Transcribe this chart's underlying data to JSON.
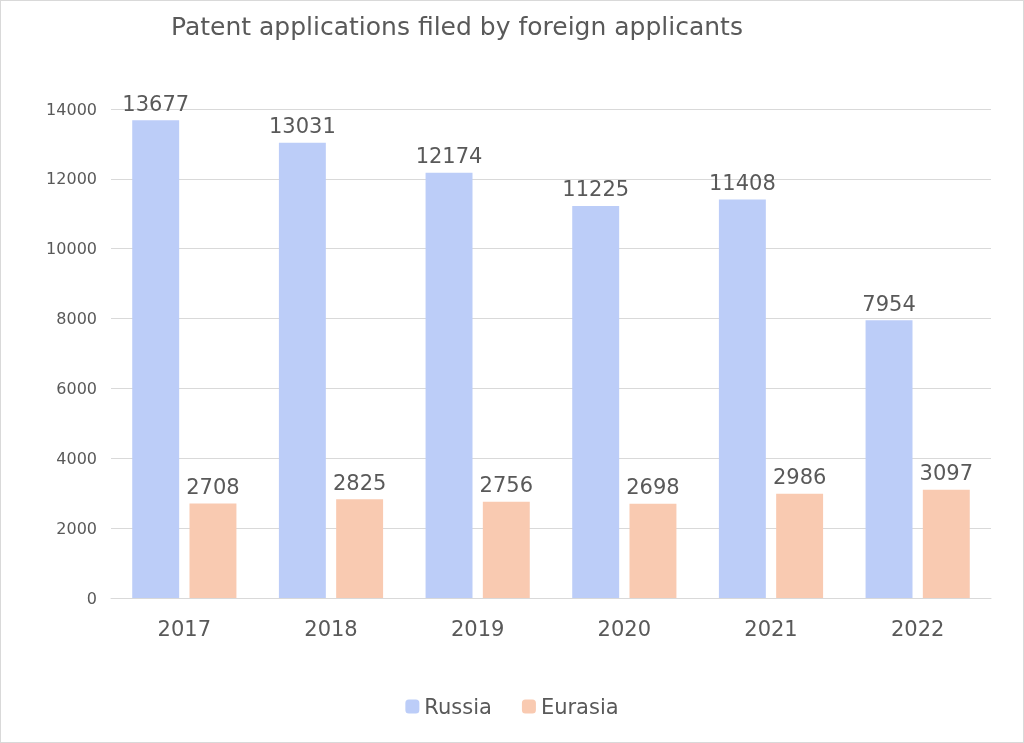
{
  "chart_data": {
    "type": "bar",
    "title": "Patent applications filed by foreign applicants",
    "categories": [
      "2017",
      "2018",
      "2019",
      "2020",
      "2021",
      "2022"
    ],
    "series": [
      {
        "name": "Russia",
        "color": "#bccdf8",
        "values": [
          13677,
          13031,
          12174,
          11225,
          11408,
          7954
        ]
      },
      {
        "name": "Eurasia",
        "color": "#f9cab1",
        "values": [
          2708,
          2825,
          2756,
          2698,
          2986,
          3097
        ]
      }
    ],
    "ylim": [
      0,
      14000
    ],
    "yticks": [
      0,
      2000,
      4000,
      6000,
      8000,
      10000,
      12000,
      14000
    ],
    "grid": "y",
    "legend": "bottom",
    "data_labels": true
  }
}
